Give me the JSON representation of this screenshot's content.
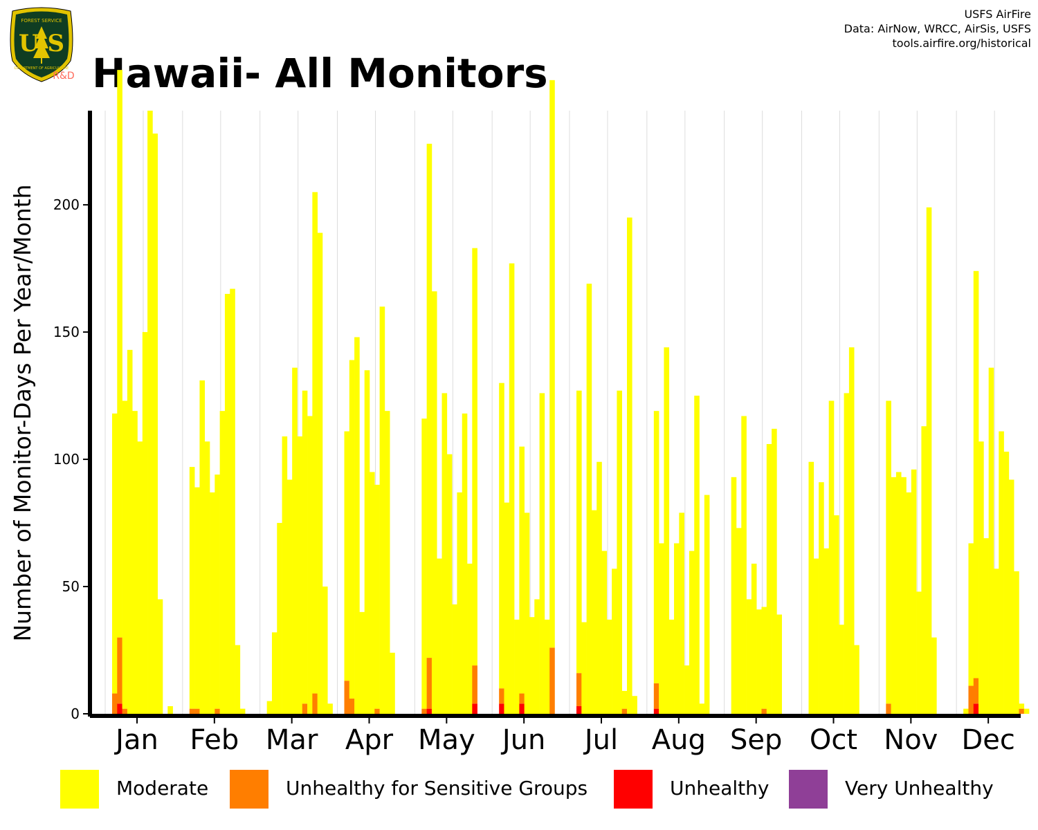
{
  "header": {
    "title": "Hawaii- All Monitors",
    "credits": [
      "USFS AirFire",
      "Data: AirNow, WRCC, AirSis, USFS",
      "tools.airfire.org/historical"
    ],
    "logo": {
      "shield_text": "U S",
      "top_text": "FOREST SERVICE",
      "bottom_text": "DEPARTMENT OF AGRICULTURE",
      "badge": "R&D"
    }
  },
  "colors": {
    "moderate": "#ffff00",
    "usg": "#ff7e00",
    "unhealthy": "#ff0000",
    "very_unhealthy": "#8f3f97"
  },
  "chart_data": {
    "type": "bar",
    "stacked": true,
    "title": "Hawaii- All Monitors",
    "xlabel": "",
    "ylabel": "Number of Monitor-Days Per Year/Month",
    "ylim": [
      0,
      237
    ],
    "yticks": [
      0,
      50,
      100,
      150,
      200
    ],
    "grid": "vertical",
    "legend_position": "bottom",
    "categories": [
      "Jan",
      "Feb",
      "Mar",
      "Apr",
      "May",
      "Jun",
      "Jul",
      "Aug",
      "Sep",
      "Oct",
      "Nov",
      "Dec"
    ],
    "series": [
      {
        "name": "Moderate",
        "color": "#ffff00",
        "values": [
          [
            110,
            223,
            121,
            143,
            119,
            107,
            150,
            237,
            228,
            45,
            0,
            3
          ],
          [
            95,
            87,
            131,
            107,
            87,
            92,
            119,
            165,
            167,
            27,
            2,
            0
          ],
          [
            5,
            32,
            75,
            109,
            92,
            136,
            109,
            123,
            117,
            197,
            189,
            50,
            4
          ],
          [
            98,
            133,
            148,
            40,
            135,
            95,
            88,
            160,
            119,
            24
          ],
          [
            114,
            202,
            166,
            61,
            126,
            102,
            43,
            87,
            118,
            59,
            164
          ],
          [
            120,
            83,
            177,
            37,
            97,
            79,
            38,
            45,
            126,
            37,
            223
          ],
          [
            111,
            36,
            169,
            80,
            99,
            64,
            37,
            57,
            127,
            7,
            195,
            7
          ],
          [
            107,
            67,
            144,
            37,
            67,
            79,
            19,
            64,
            125,
            4,
            86
          ],
          [
            93,
            73,
            117,
            45,
            59,
            41,
            40,
            106,
            112,
            39
          ],
          [
            99,
            61,
            91,
            65,
            123,
            78,
            35,
            126,
            144,
            27
          ],
          [
            119,
            93,
            95,
            93,
            87,
            96,
            48,
            113,
            199,
            30
          ],
          [
            2,
            56,
            160,
            107,
            69,
            136,
            57,
            111,
            103,
            92,
            56,
            2,
            2
          ]
        ]
      },
      {
        "name": "Unhealthy for Sensitive Groups",
        "color": "#ff7e00",
        "values": [
          [
            8,
            26,
            2,
            0,
            0,
            0,
            0,
            0,
            0,
            0,
            0,
            0
          ],
          [
            2,
            2,
            0,
            0,
            0,
            2,
            0,
            0,
            0,
            0,
            0,
            0
          ],
          [
            0,
            0,
            0,
            0,
            0,
            0,
            0,
            4,
            0,
            8,
            0,
            0,
            0
          ],
          [
            13,
            6,
            0,
            0,
            0,
            0,
            2,
            0,
            0,
            0
          ],
          [
            2,
            20,
            0,
            0,
            0,
            0,
            0,
            0,
            0,
            0,
            15
          ],
          [
            6,
            0,
            0,
            0,
            4,
            0,
            0,
            0,
            0,
            0,
            26
          ],
          [
            13,
            0,
            0,
            0,
            0,
            0,
            0,
            0,
            0,
            2,
            0,
            0
          ],
          [
            10,
            0,
            0,
            0,
            0,
            0,
            0,
            0,
            0,
            0,
            0
          ],
          [
            0,
            0,
            0,
            0,
            0,
            0,
            2,
            0,
            0,
            0
          ],
          [
            0,
            0,
            0,
            0,
            0,
            0,
            0,
            0,
            0,
            0
          ],
          [
            4,
            0,
            0,
            0,
            0,
            0,
            0,
            0,
            0,
            0
          ],
          [
            0,
            11,
            10,
            0,
            0,
            0,
            0,
            0,
            0,
            0,
            0,
            2,
            0
          ]
        ]
      },
      {
        "name": "Unhealthy",
        "color": "#ff0000",
        "values": [
          [
            0,
            4,
            0,
            0,
            0,
            0,
            0,
            0,
            0,
            0,
            0,
            0
          ],
          [
            0,
            0,
            0,
            0,
            0,
            0,
            0,
            0,
            0,
            0,
            0,
            0
          ],
          [
            0,
            0,
            0,
            0,
            0,
            0,
            0,
            0,
            0,
            0,
            0,
            0,
            0
          ],
          [
            0,
            0,
            0,
            0,
            0,
            0,
            0,
            0,
            0,
            0
          ],
          [
            0,
            2,
            0,
            0,
            0,
            0,
            0,
            0,
            0,
            0,
            4
          ],
          [
            4,
            0,
            0,
            0,
            4,
            0,
            0,
            0,
            0,
            0,
            0
          ],
          [
            3,
            0,
            0,
            0,
            0,
            0,
            0,
            0,
            0,
            0,
            0,
            0
          ],
          [
            2,
            0,
            0,
            0,
            0,
            0,
            0,
            0,
            0,
            0,
            0
          ],
          [
            0,
            0,
            0,
            0,
            0,
            0,
            0,
            0,
            0,
            0
          ],
          [
            0,
            0,
            0,
            0,
            0,
            0,
            0,
            0,
            0,
            0
          ],
          [
            0,
            0,
            0,
            0,
            0,
            0,
            0,
            0,
            0,
            0
          ],
          [
            0,
            0,
            4,
            0,
            0,
            0,
            0,
            0,
            0,
            0,
            0,
            0,
            0
          ]
        ]
      },
      {
        "name": "Very Unhealthy",
        "color": "#8f3f97",
        "values": [
          [
            0,
            0,
            0,
            0,
            0,
            0,
            0,
            0,
            0,
            0,
            0,
            0
          ],
          [
            0,
            0,
            0,
            0,
            0,
            0,
            0,
            0,
            0,
            0,
            0,
            0
          ],
          [
            0,
            0,
            0,
            0,
            0,
            0,
            0,
            0,
            0,
            0,
            0,
            0,
            0
          ],
          [
            0,
            0,
            0,
            0,
            0,
            0,
            0,
            0,
            0,
            0
          ],
          [
            0,
            0,
            0,
            0,
            0,
            0,
            0,
            0,
            0,
            0,
            0
          ],
          [
            0,
            0,
            0,
            0,
            0,
            0,
            0,
            0,
            0,
            0,
            0
          ],
          [
            0,
            0,
            0,
            0,
            0,
            0,
            0,
            0,
            0,
            0,
            0,
            0
          ],
          [
            0,
            0,
            0,
            0,
            0,
            0,
            0,
            0,
            0,
            0,
            0
          ],
          [
            0,
            0,
            0,
            0,
            0,
            0,
            0,
            0,
            0,
            0
          ],
          [
            0,
            0,
            0,
            0,
            0,
            0,
            0,
            0,
            0,
            0
          ],
          [
            0,
            0,
            0,
            0,
            0,
            0,
            0,
            0,
            0,
            0
          ],
          [
            0,
            0,
            0,
            0,
            0,
            0,
            0,
            0,
            0,
            0,
            0,
            0,
            0
          ]
        ]
      }
    ]
  },
  "legend": [
    {
      "label": "Moderate",
      "color": "#ffff00"
    },
    {
      "label": "Unhealthy for Sensitive Groups",
      "color": "#ff7e00"
    },
    {
      "label": "Unhealthy",
      "color": "#ff0000"
    },
    {
      "label": "Very Unhealthy",
      "color": "#8f3f97"
    }
  ]
}
